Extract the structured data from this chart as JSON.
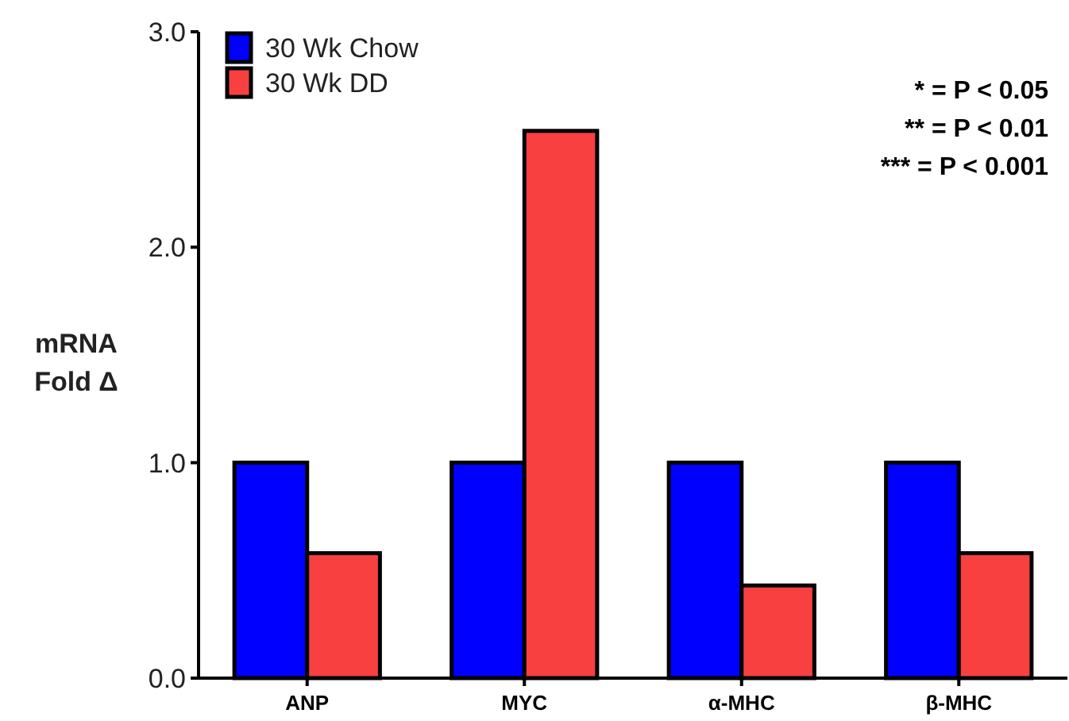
{
  "chart_data": {
    "type": "bar",
    "ylabel": "mRNA Fold Δ",
    "categories": [
      "ANP",
      "MYC",
      "α-MHC",
      "β-MHC"
    ],
    "series": [
      {
        "name": "30 Wk Chow",
        "color": "#0000ff",
        "values": [
          1.0,
          1.0,
          1.0,
          1.0
        ]
      },
      {
        "name": "30 Wk DD",
        "color": "#f84040",
        "values": [
          0.58,
          2.54,
          0.43,
          0.58
        ]
      }
    ],
    "ylim": [
      0,
      3
    ],
    "yticks": [
      {
        "value": 0,
        "label": "0.0"
      },
      {
        "value": 1,
        "label": "1.0"
      },
      {
        "value": 2,
        "label": "2.0"
      },
      {
        "value": 3,
        "label": "3.0"
      }
    ],
    "legend": "top left",
    "grid": false,
    "annotations": [
      "* = P < 0.05",
      "** = P < 0.01",
      "*** = P < 0.001"
    ]
  }
}
